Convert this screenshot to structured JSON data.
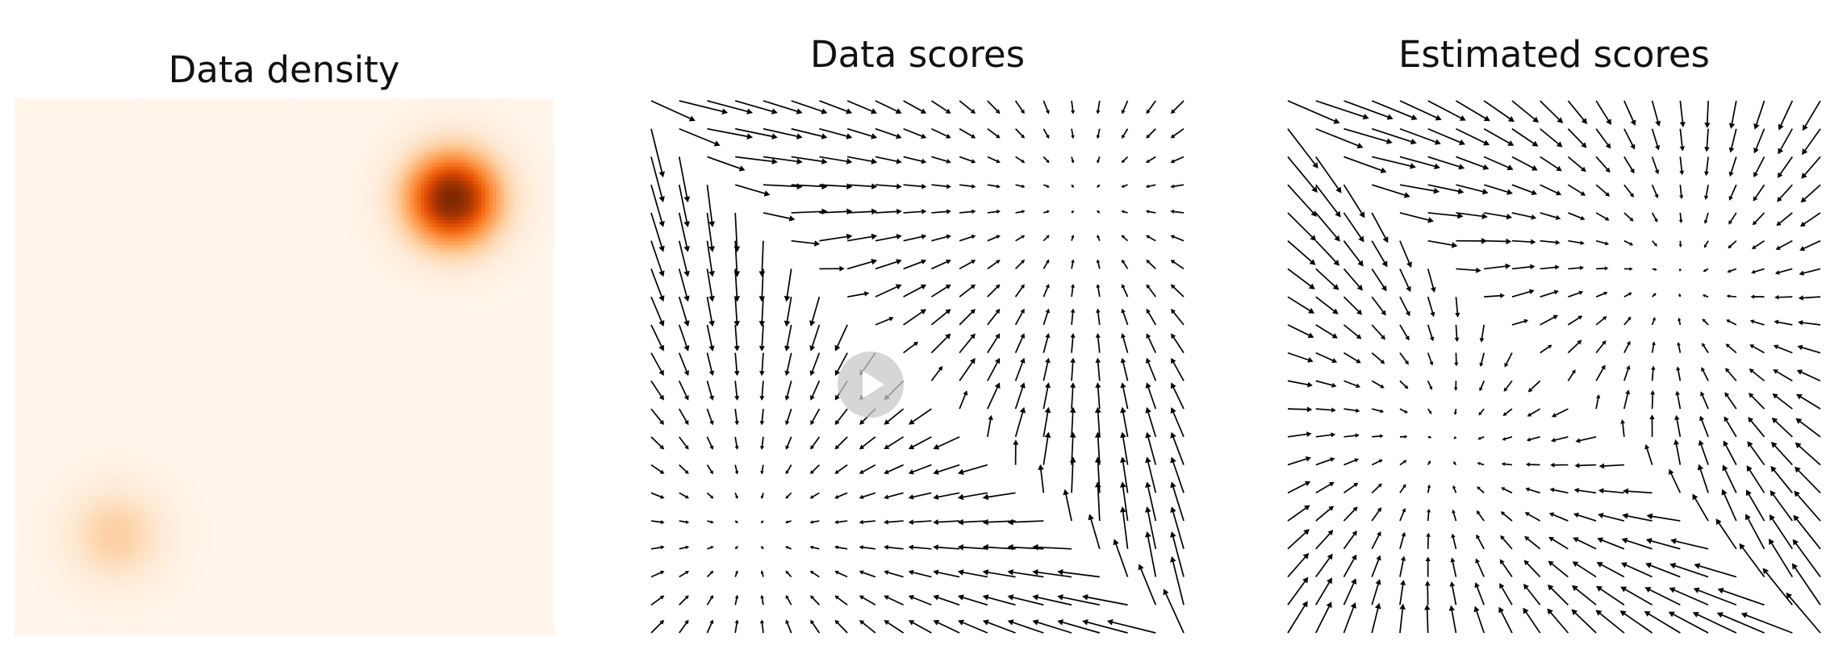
{
  "chart_data": [
    {
      "type": "heatmap",
      "title": "Data density",
      "colormap": "Oranges",
      "grid": false,
      "axes_visible": false,
      "xlim": [
        -8,
        8
      ],
      "ylim": [
        -8,
        8
      ],
      "components": [
        {
          "mean": [
            5,
            5
          ],
          "std": 1,
          "weight": 0.8
        },
        {
          "mean": [
            -5,
            -5
          ],
          "std": 1,
          "weight": 0.2
        }
      ]
    },
    {
      "type": "quiver",
      "title": "Data scores",
      "grid_points": 20,
      "xlim": [
        -8,
        8
      ],
      "ylim": [
        -8,
        8
      ],
      "field": "grad log p(x) of mixture",
      "color": "#000000"
    },
    {
      "type": "quiver",
      "title": "Estimated scores",
      "grid_points": 20,
      "xlim": [
        -8,
        8
      ],
      "ylim": [
        -8,
        8
      ],
      "field": "smooth estimate of grad log p(x)",
      "color": "#000000"
    }
  ]
}
